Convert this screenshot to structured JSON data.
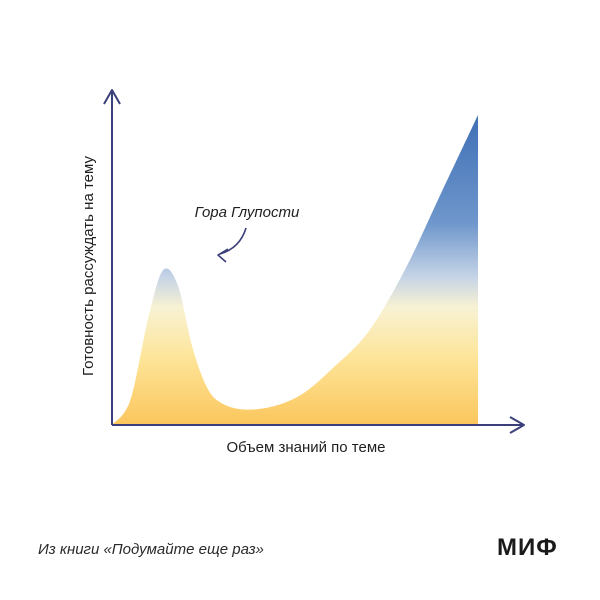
{
  "chart_data": {
    "type": "area",
    "title": "",
    "xlabel": "Объем знаний по теме",
    "ylabel": "Готовность рассуждать на тему",
    "x": [
      0,
      0.05,
      0.1,
      0.14,
      0.18,
      0.22,
      0.26,
      0.3,
      0.36,
      0.44,
      0.52,
      0.6,
      0.7,
      0.8,
      0.9,
      1.0
    ],
    "y": [
      0,
      0.08,
      0.35,
      0.5,
      0.45,
      0.25,
      0.12,
      0.07,
      0.05,
      0.06,
      0.1,
      0.18,
      0.3,
      0.5,
      0.75,
      1.0
    ],
    "xlim": [
      0,
      1
    ],
    "ylim": [
      0,
      1
    ],
    "annotations": [
      {
        "text": "Гора Глупости",
        "x": 0.22,
        "y": 0.5
      }
    ],
    "grid": false,
    "legend": "none",
    "colors": {
      "axis": "#3b3f7a",
      "fill_high": "#3f6fb5",
      "fill_mid": "#f8f2d4",
      "fill_low": "#fcc65c"
    }
  },
  "footer": {
    "source": "Из книги «Подумайте еще раз»",
    "logo": "МИФ"
  }
}
